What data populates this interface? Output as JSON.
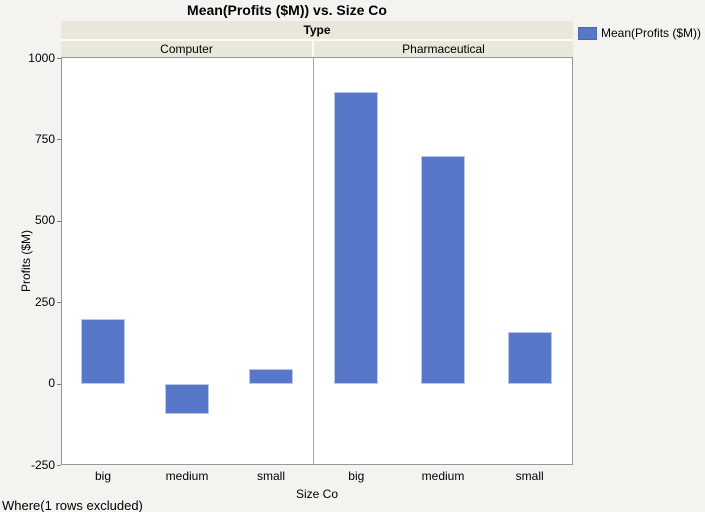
{
  "title": "Mean(Profits ($M)) vs. Size Co",
  "legend": {
    "label": "Mean(Profits ($M))",
    "swatch_color": "#5778C9"
  },
  "facet": {
    "header": "Type",
    "groups": [
      "Computer",
      "Pharmaceutical"
    ]
  },
  "axes": {
    "y_label": "Profits ($M)",
    "x_label": "Size Co"
  },
  "where_note": "Where(1 rows excluded)",
  "chart_data": {
    "type": "bar",
    "title": "Mean(Profits ($M)) vs. Size Co",
    "xlabel": "Size Co",
    "ylabel": "Profits ($M)",
    "ylim": [
      -250,
      1000
    ],
    "yticks": [
      1000,
      750,
      500,
      250,
      0,
      -250
    ],
    "categories": [
      "big",
      "medium",
      "small"
    ],
    "facet_label": "Type",
    "series": [
      {
        "name": "Computer",
        "values": [
          200,
          -92,
          45
        ]
      },
      {
        "name": "Pharmaceutical",
        "values": [
          895,
          700,
          158
        ]
      }
    ],
    "bar_color": "#5778C9",
    "grid": false,
    "legend_position": "top-right"
  }
}
